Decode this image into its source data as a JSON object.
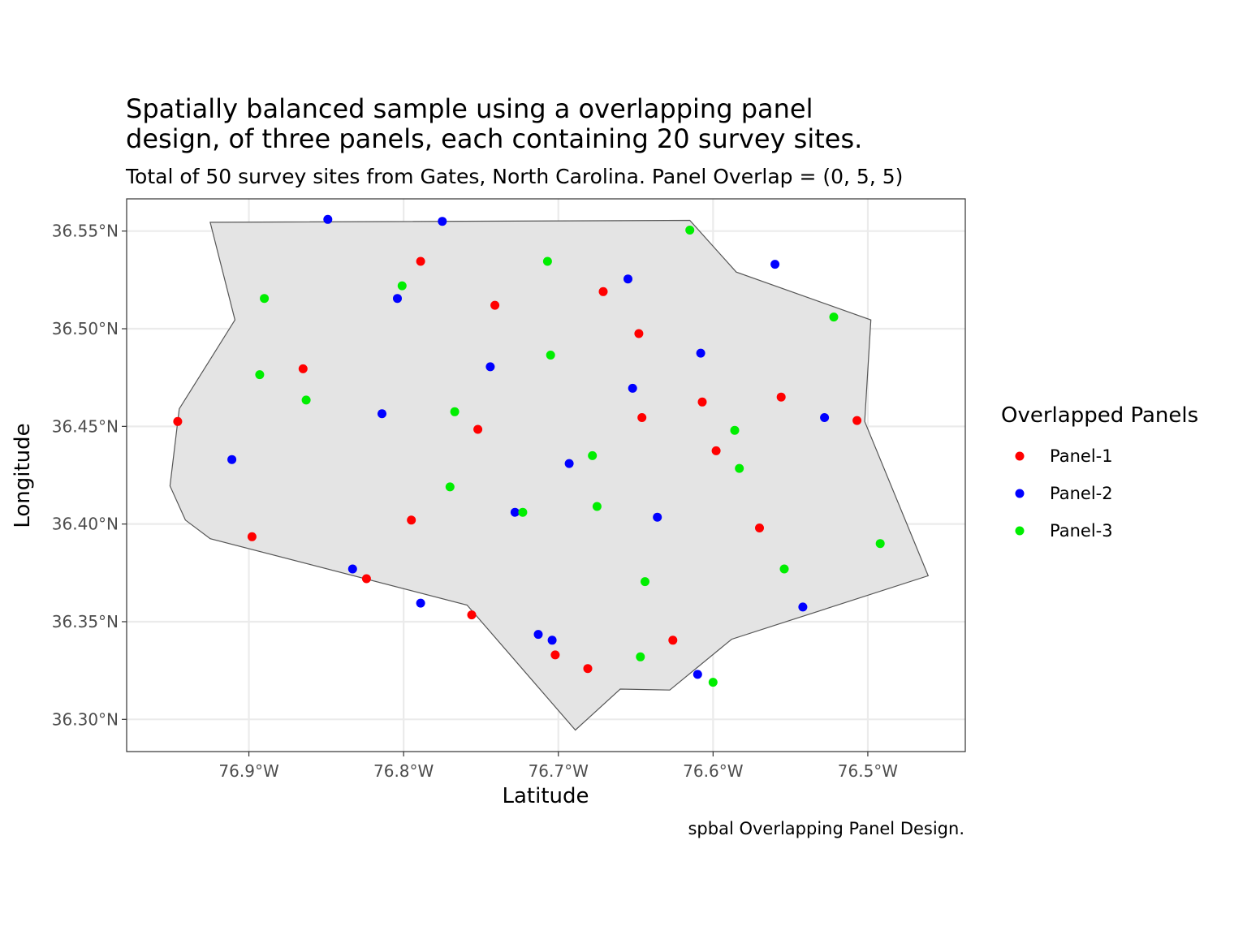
{
  "chart_data": {
    "type": "scatter",
    "title": "Spatially balanced sample using a overlapping panel\ndesign, of three panels, each containing 20 survey sites.",
    "subtitle": "Total of 50 survey sites from Gates, North Carolina. Panel Overlap = (0, 5, 5)",
    "caption": "spbal Overlapping Panel Design.",
    "xlabel": "Latitude",
    "ylabel": "Longitude",
    "xlim": [
      -76.979,
      -76.437
    ],
    "ylim": [
      36.2835,
      36.5665
    ],
    "x_ticks": [
      -76.9,
      -76.8,
      -76.7,
      -76.6,
      -76.5
    ],
    "x_tick_labels": [
      "76.9°W",
      "76.8°W",
      "76.7°W",
      "76.6°W",
      "76.5°W"
    ],
    "y_ticks": [
      36.3,
      36.35,
      36.4,
      36.45,
      36.5,
      36.55
    ],
    "y_tick_labels": [
      "36.30°N",
      "36.35°N",
      "36.40°N",
      "36.45°N",
      "36.50°N",
      "36.55°N"
    ],
    "grid": true,
    "legend": {
      "title": "Overlapped Panels",
      "position": "right"
    },
    "boundary": [
      [
        -76.925,
        36.5545
      ],
      [
        -76.615,
        36.5555
      ],
      [
        -76.585,
        36.529
      ],
      [
        -76.498,
        36.5045
      ],
      [
        -76.502,
        36.4525
      ],
      [
        -76.461,
        36.3735
      ],
      [
        -76.588,
        36.341
      ],
      [
        -76.628,
        36.315
      ],
      [
        -76.66,
        36.3155
      ],
      [
        -76.689,
        36.2945
      ],
      [
        -76.759,
        36.3585
      ],
      [
        -76.925,
        36.3925
      ],
      [
        -76.941,
        36.402
      ],
      [
        -76.951,
        36.4195
      ],
      [
        -76.945,
        36.459
      ],
      [
        -76.909,
        36.5045
      ]
    ],
    "series": [
      {
        "name": "Panel-1",
        "color": "#ff0000",
        "points": [
          [
            -76.946,
            36.4525
          ],
          [
            -76.865,
            36.4795
          ],
          [
            -76.898,
            36.3935
          ],
          [
            -76.789,
            36.5345
          ],
          [
            -76.741,
            36.512
          ],
          [
            -76.752,
            36.4485
          ],
          [
            -76.795,
            36.402
          ],
          [
            -76.824,
            36.372
          ],
          [
            -76.756,
            36.3535
          ],
          [
            -76.702,
            36.333
          ],
          [
            -76.681,
            36.326
          ],
          [
            -76.626,
            36.3405
          ],
          [
            -76.671,
            36.519
          ],
          [
            -76.648,
            36.4975
          ],
          [
            -76.646,
            36.4545
          ],
          [
            -76.607,
            36.4625
          ],
          [
            -76.598,
            36.4375
          ],
          [
            -76.57,
            36.398
          ],
          [
            -76.556,
            36.465
          ],
          [
            -76.507,
            36.453
          ]
        ]
      },
      {
        "name": "Panel-2",
        "color": "#0000ff",
        "points": [
          [
            -76.849,
            36.556
          ],
          [
            -76.775,
            36.555
          ],
          [
            -76.804,
            36.5155
          ],
          [
            -76.814,
            36.4565
          ],
          [
            -76.911,
            36.433
          ],
          [
            -76.833,
            36.377
          ],
          [
            -76.789,
            36.3595
          ],
          [
            -76.744,
            36.4805
          ],
          [
            -76.728,
            36.406
          ],
          [
            -76.693,
            36.431
          ],
          [
            -76.713,
            36.3435
          ],
          [
            -76.704,
            36.3405
          ],
          [
            -76.655,
            36.5255
          ],
          [
            -76.652,
            36.4695
          ],
          [
            -76.636,
            36.4035
          ],
          [
            -76.608,
            36.4875
          ],
          [
            -76.61,
            36.323
          ],
          [
            -76.56,
            36.533
          ],
          [
            -76.528,
            36.4545
          ],
          [
            -76.542,
            36.3575
          ]
        ]
      },
      {
        "name": "Panel-3",
        "color": "#00ee00",
        "points": [
          [
            -76.89,
            36.5155
          ],
          [
            -76.893,
            36.4765
          ],
          [
            -76.863,
            36.4635
          ],
          [
            -76.801,
            36.522
          ],
          [
            -76.767,
            36.4575
          ],
          [
            -76.77,
            36.419
          ],
          [
            -76.707,
            36.5345
          ],
          [
            -76.705,
            36.4865
          ],
          [
            -76.723,
            36.406
          ],
          [
            -76.678,
            36.435
          ],
          [
            -76.675,
            36.409
          ],
          [
            -76.644,
            36.3705
          ],
          [
            -76.647,
            36.332
          ],
          [
            -76.615,
            36.5505
          ],
          [
            -76.586,
            36.448
          ],
          [
            -76.583,
            36.4285
          ],
          [
            -76.6,
            36.319
          ],
          [
            -76.554,
            36.377
          ],
          [
            -76.522,
            36.506
          ],
          [
            -76.492,
            36.39
          ]
        ]
      }
    ]
  }
}
